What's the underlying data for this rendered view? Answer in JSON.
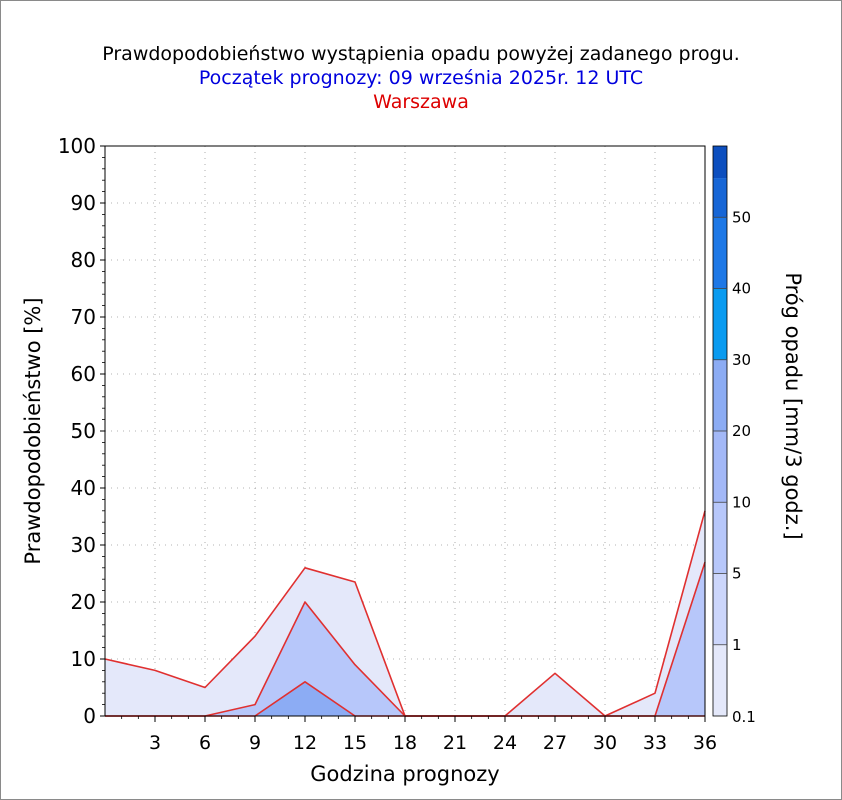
{
  "chart_data": {
    "type": "area",
    "title": "Prawdopodobieństwo wystąpienia opadu powyżej zadanego progu.",
    "subtitle": "Początek prognozy: 09 września 2025r. 12 UTC",
    "location": "Warszawa",
    "xlabel": "Godzina prognozy",
    "ylabel": "Prawdopodobieństwo [%]",
    "colorbar_label": "Próg opadu [mm/3 godz.]",
    "x": [
      0,
      3,
      6,
      9,
      12,
      15,
      18,
      21,
      24,
      27,
      30,
      33,
      36
    ],
    "x_tick_labels": [
      "3",
      "6",
      "9",
      "12",
      "15",
      "18",
      "21",
      "24",
      "27",
      "30",
      "33",
      "36"
    ],
    "xlim": [
      0,
      36
    ],
    "ylim": [
      0,
      100
    ],
    "y_ticks": [
      0,
      10,
      20,
      30,
      40,
      50,
      60,
      70,
      80,
      90,
      100
    ],
    "grid": true,
    "series": [
      {
        "name": "0.1",
        "color": "#e4e8fa",
        "values": [
          10,
          8,
          5,
          14,
          26,
          23.5,
          0,
          0,
          0,
          7.5,
          0,
          4,
          36
        ]
      },
      {
        "name": "1",
        "color": "#b7c7fa",
        "values": [
          0,
          0,
          0,
          2,
          20,
          9,
          0,
          0,
          0,
          0,
          0,
          0,
          27
        ]
      },
      {
        "name": "5",
        "color": "#8cacf4",
        "values": [
          0,
          0,
          0,
          0,
          6,
          0,
          0,
          0,
          0,
          0,
          0,
          0,
          0
        ]
      }
    ],
    "colorbar": {
      "labels": [
        "0.1",
        "1",
        "5",
        "10",
        "20",
        "30",
        "40",
        "50"
      ],
      "colors": [
        "#e4e8fa",
        "#ccd6fb",
        "#b7c7fa",
        "#a3b8f7",
        "#8cacf4",
        "#0a9bf0",
        "#1e78e6",
        "#1766d6",
        "#0d4fbf"
      ]
    },
    "line_color": "#e03030"
  }
}
